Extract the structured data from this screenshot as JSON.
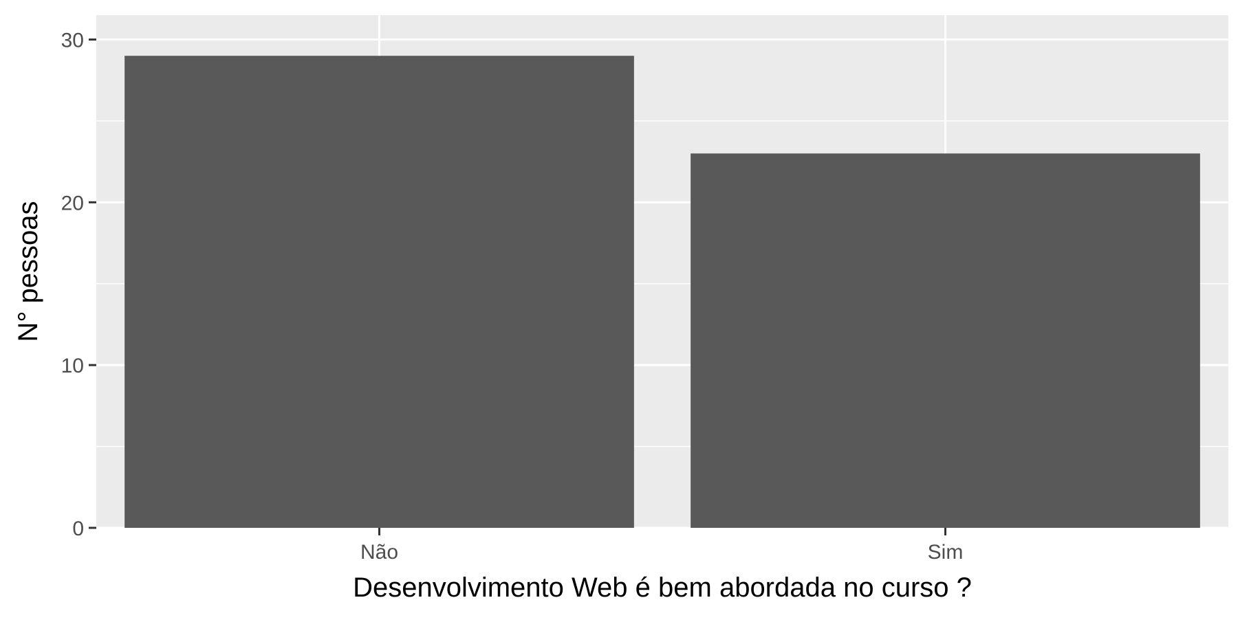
{
  "chart_data": {
    "type": "bar",
    "categories": [
      "Não",
      "Sim"
    ],
    "values": [
      29,
      23
    ],
    "xlabel": "Desenvolvimento Web é bem abordada no curso ?",
    "ylabel": "N° pessoas",
    "ylim": [
      0,
      31.5
    ],
    "yticks": [
      0,
      10,
      20,
      30
    ],
    "grid": true,
    "legend": "none",
    "colors": {
      "bar": "#595959",
      "panel": "#ebebeb",
      "grid": "#ffffff",
      "tick_label": "#4d4d4d",
      "axis_title": "#000000",
      "tick_mark": "#333333"
    }
  }
}
